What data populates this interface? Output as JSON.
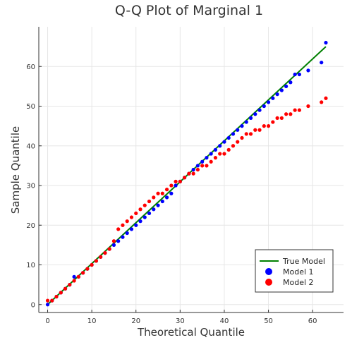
{
  "chart_data": {
    "type": "scatter",
    "title": "Q-Q Plot of Marginal 1",
    "xlabel": "Theoretical Quantile",
    "ylabel": "Sample Quantile",
    "xlim": [
      -2,
      67
    ],
    "ylim": [
      -2,
      70
    ],
    "xticks": [
      0,
      10,
      20,
      30,
      40,
      50,
      60
    ],
    "yticks": [
      0,
      10,
      20,
      30,
      40,
      50,
      60
    ],
    "grid": true,
    "legend_position": "bottom-right",
    "line": {
      "name": "True Model",
      "color": "#008000",
      "x": [
        0,
        63
      ],
      "y": [
        0,
        65
      ]
    },
    "series": [
      {
        "name": "Model 1",
        "color": "#0000ff",
        "x": [
          0,
          1,
          2,
          3,
          4,
          5,
          6,
          7,
          8,
          9,
          10,
          11,
          12,
          13,
          14,
          15,
          16,
          17,
          18,
          19,
          20,
          21,
          22,
          23,
          24,
          25,
          26,
          27,
          28,
          29,
          30,
          31,
          32,
          33,
          34,
          35,
          36,
          37,
          38,
          39,
          40,
          41,
          42,
          43,
          44,
          45,
          46,
          47,
          48,
          49,
          50,
          51,
          52,
          53,
          54,
          55,
          56,
          57,
          59,
          62,
          63
        ],
        "y": [
          0,
          1,
          2,
          3,
          4,
          5,
          7,
          7,
          8,
          9,
          10,
          11,
          12,
          13,
          14,
          15,
          16,
          17,
          18,
          19,
          20,
          21,
          22,
          23,
          24,
          25,
          26,
          27,
          28,
          30,
          31,
          32,
          33,
          34,
          35,
          36,
          37,
          38,
          39,
          40,
          41,
          42,
          43,
          44,
          45,
          46,
          47,
          48,
          49,
          50,
          51,
          52,
          53,
          54,
          55,
          56,
          58,
          58,
          59,
          61,
          66
        ]
      },
      {
        "name": "Model 2",
        "color": "#ff0000",
        "x": [
          0,
          1,
          2,
          3,
          4,
          5,
          6,
          7,
          8,
          9,
          10,
          11,
          12,
          13,
          14,
          15,
          16,
          17,
          18,
          19,
          20,
          21,
          22,
          23,
          24,
          25,
          26,
          27,
          28,
          29,
          30,
          31,
          32,
          33,
          34,
          35,
          36,
          37,
          38,
          39,
          40,
          41,
          42,
          43,
          44,
          45,
          46,
          47,
          48,
          49,
          50,
          51,
          52,
          53,
          54,
          55,
          56,
          57,
          59,
          62,
          63
        ],
        "y": [
          1,
          1,
          2,
          3,
          4,
          5,
          6,
          7,
          8,
          9,
          10,
          11,
          12,
          13,
          14,
          16,
          19,
          20,
          21,
          22,
          23,
          24,
          25,
          26,
          27,
          28,
          28,
          29,
          30,
          31,
          31,
          32,
          33,
          33,
          34,
          35,
          35,
          36,
          37,
          38,
          38,
          39,
          40,
          41,
          42,
          43,
          43,
          44,
          44,
          45,
          45,
          46,
          47,
          47,
          48,
          48,
          49,
          49,
          50,
          51,
          52
        ]
      }
    ]
  }
}
